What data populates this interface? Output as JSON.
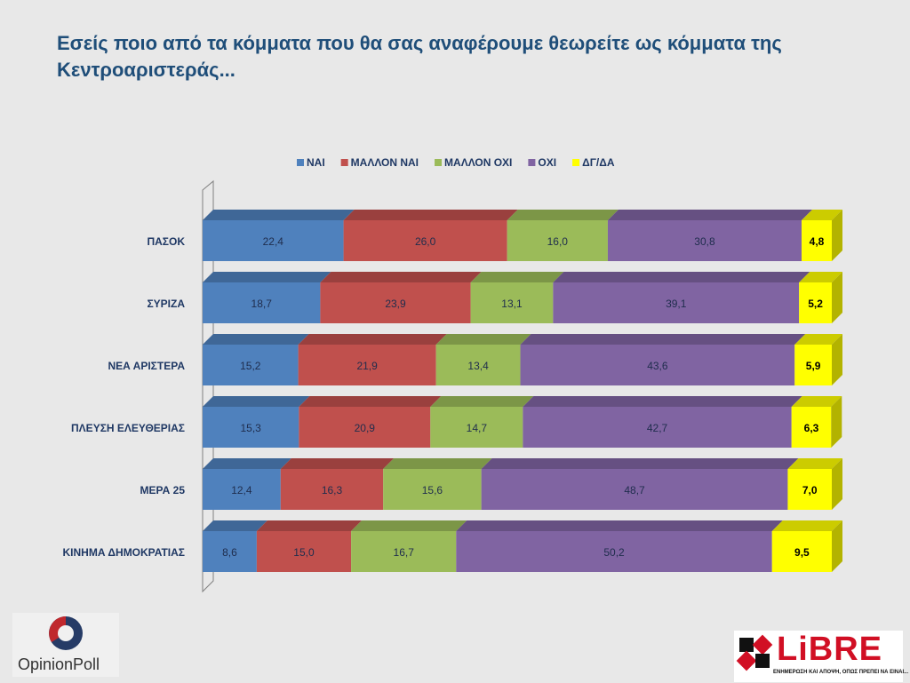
{
  "title_lines": [
    "Εσείς ποιο από τα κόμματα που θα σας αναφέρουμε θεωρείτε ως κόμματα της",
    "Κεντροαριστεράς..."
  ],
  "logos": {
    "opinion_poll": "OpinionPoll",
    "libre": "LiBRE",
    "libre_tagline": "ΕΝΗΜΕΡΩΣΗ ΚΑΙ ΑΠΟΨΗ, ΟΠΩΣ ΠΡΕΠΕΙ ΝΑ ΕΙΝΑΙ..."
  },
  "chart_data": {
    "type": "bar",
    "orientation": "horizontal",
    "stacked": true,
    "style": "3d",
    "xlim": [
      0,
      100
    ],
    "grid": false,
    "legend_position": "top",
    "categories": [
      "ΠΑΣΟΚ",
      "ΣΥΡΙΖΑ",
      "ΝΕΑ ΑΡΙΣΤΕΡΑ",
      "ΠΛΕΥΣΗ ΕΛΕΥΘΕΡΙΑΣ",
      "ΜΕΡΑ 25",
      "ΚΙΝΗΜΑ ΔΗΜΟΚΡΑΤΙΑΣ"
    ],
    "series": [
      {
        "name": "ΝΑΙ",
        "color": "#4f81bd",
        "values": [
          "22,4",
          "18,7",
          "15,2",
          "15,3",
          "12,4",
          "8,6"
        ]
      },
      {
        "name": "ΜΑΛΛΟΝ ΝΑΙ",
        "color": "#c0504d",
        "values": [
          "26,0",
          "23,9",
          "21,9",
          "20,9",
          "16,3",
          "15,0"
        ]
      },
      {
        "name": "ΜΑΛΛΟΝ ΟΧΙ",
        "color": "#9bbb59",
        "values": [
          "16,0",
          "13,1",
          "13,4",
          "14,7",
          "15,6",
          "16,7"
        ]
      },
      {
        "name": "ΟΧΙ",
        "color": "#8064a2",
        "values": [
          "30,8",
          "39,1",
          "43,6",
          "42,7",
          "48,7",
          "50,2"
        ]
      },
      {
        "name": "ΔΓ/ΔΑ",
        "color": "#ffff00",
        "values": [
          "4,8",
          "5,2",
          "5,9",
          "6,3",
          "7,0",
          "9,5"
        ]
      }
    ]
  }
}
